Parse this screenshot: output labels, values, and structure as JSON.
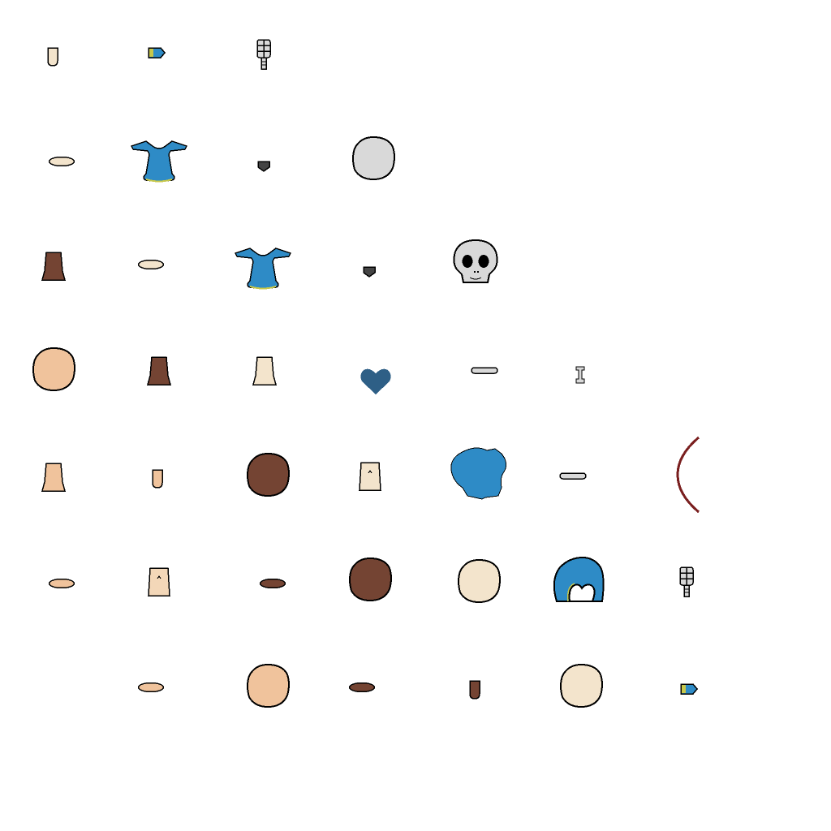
{
  "palette": {
    "outline": "#000000",
    "skin_light": "#f3e4cc",
    "skin_tan": "#f0c39c",
    "skin_pale": "#f3d7b8",
    "skin_dark": "#744433",
    "hair_blue": "#2e8bc6",
    "shirt_blue": "#2e8bc6",
    "shirt_trim": "#c8c84a",
    "heart_blue": "#2e5f86",
    "bone": "#d9d9d9",
    "dark_red": "#7a1f1f",
    "gem_dark": "#444444",
    "stripe_grey": "#9a9a9a"
  },
  "sprites": [
    {
      "name": "finger-light",
      "kind": "finger",
      "fill": "#f3e4cc"
    },
    {
      "name": "sleeve-cuff-blue",
      "kind": "cuff",
      "fill": "#2e8bc6"
    },
    {
      "name": "skeleton-finger",
      "kind": "skelfinger",
      "fill": "#d9d9d9"
    },
    {
      "name": "foot-light",
      "kind": "foot",
      "fill": "#f3e4cc"
    },
    {
      "name": "shirt-blue",
      "kind": "shirt",
      "fill": "#2e8bc6"
    },
    {
      "name": "gem-dark",
      "kind": "gem",
      "fill": "#444444"
    },
    {
      "name": "head-bone",
      "kind": "head",
      "fill": "#d9d9d9"
    },
    {
      "name": "leg-dark",
      "kind": "leg",
      "fill": "#744433"
    },
    {
      "name": "foot-light-2",
      "kind": "foot",
      "fill": "#f3e4cc"
    },
    {
      "name": "shirt-blue-2",
      "kind": "shirt",
      "fill": "#2e8bc6"
    },
    {
      "name": "gem-dark-2",
      "kind": "gem",
      "fill": "#444444"
    },
    {
      "name": "skull",
      "kind": "skull",
      "fill": "#d9d9d9"
    },
    {
      "name": "head-tan",
      "kind": "head",
      "fill": "#f0c39c"
    },
    {
      "name": "leg-dark-2",
      "kind": "leg",
      "fill": "#744433"
    },
    {
      "name": "leg-light",
      "kind": "leg",
      "fill": "#f3e4cc"
    },
    {
      "name": "heart-blue",
      "kind": "heart",
      "fill": "#2e5f86"
    },
    {
      "name": "bone-long",
      "kind": "bone",
      "fill": "#d9d9d9"
    },
    {
      "name": "bone-small",
      "kind": "bonesmall",
      "fill": "#d9d9d9"
    },
    {
      "name": "leg-tan",
      "kind": "leg",
      "fill": "#f0c39c"
    },
    {
      "name": "finger-tan",
      "kind": "finger",
      "fill": "#f0c39c"
    },
    {
      "name": "head-dark",
      "kind": "head",
      "fill": "#744433"
    },
    {
      "name": "torso-light",
      "kind": "torso",
      "fill": "#f3e4cc"
    },
    {
      "name": "hair-blue",
      "kind": "hair",
      "fill": "#2e8bc6"
    },
    {
      "name": "bone-long-2",
      "kind": "bone",
      "fill": "#d9d9d9"
    },
    {
      "name": "arc-dark-red",
      "kind": "arc",
      "fill": "#7a1f1f"
    },
    {
      "name": "foot-tan",
      "kind": "foot",
      "fill": "#f0c39c"
    },
    {
      "name": "torso-tan",
      "kind": "torso",
      "fill": "#f3d7b8"
    },
    {
      "name": "foot-dark",
      "kind": "foot",
      "fill": "#744433"
    },
    {
      "name": "head-dark-2",
      "kind": "head",
      "fill": "#744433"
    },
    {
      "name": "head-light",
      "kind": "head",
      "fill": "#f3e4cc"
    },
    {
      "name": "hair-blue-back",
      "kind": "hairback",
      "fill": "#2e8bc6"
    },
    {
      "name": "skeleton-finger-2",
      "kind": "skelfinger",
      "fill": "#d9d9d9"
    },
    {
      "name": "foot-tan-2",
      "kind": "foot",
      "fill": "#f0c39c"
    },
    {
      "name": "head-tan-2",
      "kind": "head",
      "fill": "#f0c39c"
    },
    {
      "name": "foot-dark-2",
      "kind": "foot",
      "fill": "#744433"
    },
    {
      "name": "finger-dark",
      "kind": "finger",
      "fill": "#744433"
    },
    {
      "name": "head-light-2",
      "kind": "head",
      "fill": "#f3e4cc"
    },
    {
      "name": "sleeve-cuff-blue-2",
      "kind": "cuff",
      "fill": "#2e8bc6"
    }
  ]
}
